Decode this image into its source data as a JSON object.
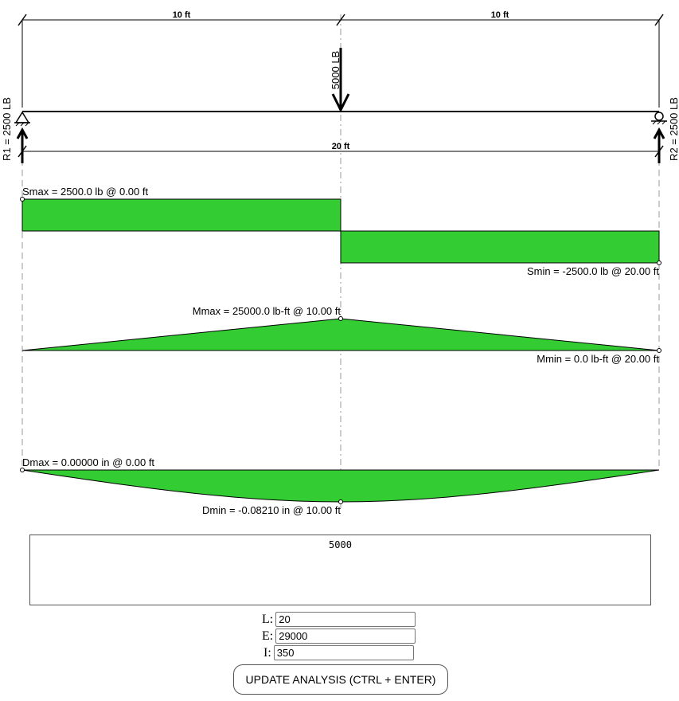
{
  "beam": {
    "span_ft": 20,
    "point_load": {
      "value_lb": 5000,
      "position_ft": 10,
      "label": "5000 LB"
    },
    "supports": [
      {
        "type": "pin",
        "position_ft": 0,
        "reaction_label": "R1 = 2500 LB"
      },
      {
        "type": "roller",
        "position_ft": 20,
        "reaction_label": "R2 = 2500 LB"
      }
    ],
    "segment_dimensions": [
      "10 ft",
      "10 ft"
    ],
    "total_dimension": "20 ft"
  },
  "shear": {
    "points": [
      [
        0,
        2500
      ],
      [
        10,
        2500
      ],
      [
        10,
        -2500
      ],
      [
        20,
        -2500
      ]
    ],
    "max_label": "Smax = 2500.0 lb @ 0.00 ft",
    "min_label": "Smin = -2500.0 lb @ 20.00 ft"
  },
  "moment": {
    "points": [
      [
        0,
        0
      ],
      [
        10,
        25000
      ],
      [
        20,
        0
      ]
    ],
    "max_label": "Mmax = 25000.0 lb-ft @ 10.00 ft",
    "min_label": "Mmin = 0.0 lb-ft @ 20.00 ft"
  },
  "deflection": {
    "max_in": -0.0821,
    "max_label": "Dmax = 0.00000 in @ 0.00 ft",
    "min_label": "Dmin = -0.08210 in @ 10.00 ft"
  },
  "colors": {
    "fill": "#33cc33",
    "stroke": "#000000",
    "guide": "#999999"
  },
  "editor": {
    "text": "5000"
  },
  "inputs": {
    "L": {
      "label": "L:",
      "value": "20"
    },
    "E": {
      "label": "E:",
      "value": "29000"
    },
    "I": {
      "label": "I:",
      "value": "350"
    }
  },
  "button": {
    "label": "UPDATE ANALYSIS (CTRL + ENTER)"
  }
}
